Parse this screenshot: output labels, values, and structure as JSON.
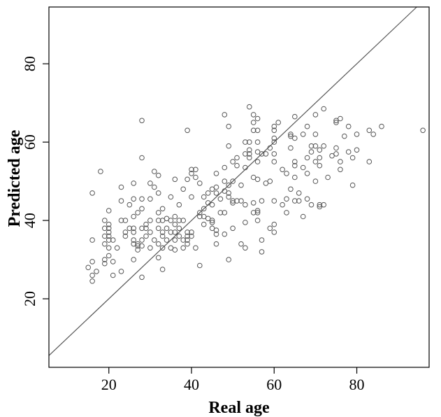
{
  "chart_data": {
    "type": "scatter",
    "title": "",
    "xlabel": "Real age",
    "ylabel": "Predicted age",
    "xlim": [
      5.5,
      97.5
    ],
    "ylim": [
      2.5,
      94.5
    ],
    "x_ticks": [
      20,
      40,
      60,
      80
    ],
    "y_ticks": [
      20,
      40,
      60,
      80
    ],
    "x_tick_labels": [
      "20",
      "40",
      "60",
      "80"
    ],
    "y_tick_labels": [
      "20",
      "40",
      "60",
      "80"
    ],
    "grid": false,
    "legend": "none",
    "reference_line": {
      "slope": 1,
      "intercept": 0
    },
    "point_color": "#555555",
    "line_color": "#555555",
    "points": [
      [
        15,
        28
      ],
      [
        16,
        26
      ],
      [
        16,
        24.5
      ],
      [
        16,
        29.5
      ],
      [
        16,
        35
      ],
      [
        16,
        47
      ],
      [
        17,
        27
      ],
      [
        18,
        52.5
      ],
      [
        19,
        29
      ],
      [
        19,
        30
      ],
      [
        19,
        34
      ],
      [
        19,
        36
      ],
      [
        19,
        38
      ],
      [
        19,
        40
      ],
      [
        20,
        31
      ],
      [
        20,
        33
      ],
      [
        20,
        35
      ],
      [
        20,
        36
      ],
      [
        20,
        37
      ],
      [
        20,
        38
      ],
      [
        20,
        39
      ],
      [
        20,
        42.5
      ],
      [
        21,
        26
      ],
      [
        21,
        29.5
      ],
      [
        21,
        35
      ],
      [
        22,
        33
      ],
      [
        23,
        27
      ],
      [
        23,
        40
      ],
      [
        23,
        45
      ],
      [
        23,
        48.5
      ],
      [
        24,
        36
      ],
      [
        24,
        37
      ],
      [
        24,
        40
      ],
      [
        25,
        38
      ],
      [
        25,
        44
      ],
      [
        26,
        30
      ],
      [
        26,
        34
      ],
      [
        26,
        35
      ],
      [
        26,
        37
      ],
      [
        26,
        38
      ],
      [
        26,
        41
      ],
      [
        26,
        45.5
      ],
      [
        26,
        49.5
      ],
      [
        27,
        32.5
      ],
      [
        27,
        33.5
      ],
      [
        27,
        34
      ],
      [
        27,
        42
      ],
      [
        28,
        25.5
      ],
      [
        28,
        33.5
      ],
      [
        28,
        35
      ],
      [
        28,
        38
      ],
      [
        28,
        43
      ],
      [
        28,
        45.5
      ],
      [
        28,
        56
      ],
      [
        28,
        65.5
      ],
      [
        29,
        36
      ],
      [
        29,
        38
      ],
      [
        29,
        39
      ],
      [
        30,
        33
      ],
      [
        30,
        37
      ],
      [
        30,
        40
      ],
      [
        30,
        45.5
      ],
      [
        30,
        49.5
      ],
      [
        31,
        35
      ],
      [
        31,
        48.5
      ],
      [
        31,
        52.5
      ],
      [
        32,
        30.5
      ],
      [
        32,
        34
      ],
      [
        32,
        38
      ],
      [
        32,
        40
      ],
      [
        32,
        42
      ],
      [
        32,
        47
      ],
      [
        32,
        51.5
      ],
      [
        33,
        27.5
      ],
      [
        33,
        33
      ],
      [
        33,
        36
      ],
      [
        33,
        37
      ],
      [
        33,
        40
      ],
      [
        33,
        43
      ],
      [
        34,
        35
      ],
      [
        34,
        38
      ],
      [
        34,
        40.5
      ],
      [
        35,
        33
      ],
      [
        35,
        37
      ],
      [
        35,
        40
      ],
      [
        35,
        46
      ],
      [
        36,
        32.5
      ],
      [
        36,
        35
      ],
      [
        36,
        37
      ],
      [
        36,
        39
      ],
      [
        36,
        41
      ],
      [
        36,
        50.5
      ],
      [
        37,
        36
      ],
      [
        37,
        38
      ],
      [
        37,
        40
      ],
      [
        37,
        44
      ],
      [
        38,
        33
      ],
      [
        38,
        35
      ],
      [
        38,
        40
      ],
      [
        38,
        48
      ],
      [
        39,
        34
      ],
      [
        39,
        35
      ],
      [
        39,
        36
      ],
      [
        39,
        37
      ],
      [
        39,
        50.5
      ],
      [
        39,
        63
      ],
      [
        40,
        36
      ],
      [
        40,
        37
      ],
      [
        40,
        46
      ],
      [
        40,
        52
      ],
      [
        40,
        53
      ],
      [
        41,
        33
      ],
      [
        41,
        51
      ],
      [
        41,
        53
      ],
      [
        42,
        28.5
      ],
      [
        42,
        41
      ],
      [
        42,
        42
      ],
      [
        42,
        49.5
      ],
      [
        43,
        39
      ],
      [
        43,
        41
      ],
      [
        43,
        43
      ],
      [
        43,
        46
      ],
      [
        44,
        40.5
      ],
      [
        44,
        44.5
      ],
      [
        44,
        47
      ],
      [
        45,
        38
      ],
      [
        45,
        39.5
      ],
      [
        45,
        40
      ],
      [
        45,
        44
      ],
      [
        45,
        48
      ],
      [
        46,
        34
      ],
      [
        46,
        36.5
      ],
      [
        46,
        37.5
      ],
      [
        46,
        47
      ],
      [
        46,
        48.5
      ],
      [
        46,
        52
      ],
      [
        47,
        42
      ],
      [
        47,
        45.5
      ],
      [
        48,
        36.5
      ],
      [
        48,
        42
      ],
      [
        48,
        47.5
      ],
      [
        48,
        50
      ],
      [
        48,
        53.5
      ],
      [
        48,
        67
      ],
      [
        49,
        30
      ],
      [
        49,
        46
      ],
      [
        49,
        47
      ],
      [
        49,
        49
      ],
      [
        49,
        59
      ],
      [
        49,
        64
      ],
      [
        50,
        38
      ],
      [
        50,
        44.5
      ],
      [
        50,
        45
      ],
      [
        50,
        50
      ],
      [
        50,
        55
      ],
      [
        51,
        45
      ],
      [
        51,
        54
      ],
      [
        51,
        56
      ],
      [
        52,
        34
      ],
      [
        52,
        45
      ],
      [
        52,
        49
      ],
      [
        53,
        33
      ],
      [
        53,
        39.5
      ],
      [
        53,
        44
      ],
      [
        53,
        53.5
      ],
      [
        53,
        57
      ],
      [
        53,
        60
      ],
      [
        54,
        56
      ],
      [
        54,
        57
      ],
      [
        54,
        58
      ],
      [
        54,
        60
      ],
      [
        54,
        69
      ],
      [
        55,
        42
      ],
      [
        55,
        44.5
      ],
      [
        55,
        51
      ],
      [
        55,
        63
      ],
      [
        55,
        65
      ],
      [
        55,
        67
      ],
      [
        56,
        40
      ],
      [
        56,
        42
      ],
      [
        56,
        42.5
      ],
      [
        56,
        50.5
      ],
      [
        56,
        55
      ],
      [
        56,
        57.5
      ],
      [
        56,
        60
      ],
      [
        56,
        63
      ],
      [
        56,
        66
      ],
      [
        57,
        32
      ],
      [
        57,
        35
      ],
      [
        57,
        45
      ],
      [
        57,
        57
      ],
      [
        58,
        49.5
      ],
      [
        58,
        57
      ],
      [
        59,
        38
      ],
      [
        59,
        50
      ],
      [
        59,
        58.5
      ],
      [
        60,
        37
      ],
      [
        60,
        39
      ],
      [
        60,
        45
      ],
      [
        60,
        55
      ],
      [
        60,
        57
      ],
      [
        60,
        60
      ],
      [
        60,
        61
      ],
      [
        60,
        63
      ],
      [
        60,
        64
      ],
      [
        61,
        65
      ],
      [
        62,
        44
      ],
      [
        62,
        53
      ],
      [
        63,
        42
      ],
      [
        63,
        45.5
      ],
      [
        63,
        52
      ],
      [
        64,
        48
      ],
      [
        64,
        58.5
      ],
      [
        64,
        61.5
      ],
      [
        64,
        62
      ],
      [
        65,
        45
      ],
      [
        65,
        51
      ],
      [
        65,
        54
      ],
      [
        65,
        55
      ],
      [
        65,
        61
      ],
      [
        65,
        66.5
      ],
      [
        66,
        45
      ],
      [
        66,
        47
      ],
      [
        67,
        41
      ],
      [
        67,
        53.5
      ],
      [
        67,
        62
      ],
      [
        68,
        45.5
      ],
      [
        68,
        52
      ],
      [
        68,
        56
      ],
      [
        68,
        64
      ],
      [
        69,
        44
      ],
      [
        69,
        57.5
      ],
      [
        69,
        59
      ],
      [
        70,
        50
      ],
      [
        70,
        55
      ],
      [
        70,
        59
      ],
      [
        70,
        62
      ],
      [
        70,
        67
      ],
      [
        71,
        43.5
      ],
      [
        71,
        44
      ],
      [
        71,
        54
      ],
      [
        71,
        56
      ],
      [
        71,
        58
      ],
      [
        72,
        44
      ],
      [
        72,
        59
      ],
      [
        72,
        68.5
      ],
      [
        73,
        51
      ],
      [
        74,
        56.5
      ],
      [
        75,
        57
      ],
      [
        75,
        58.5
      ],
      [
        75,
        65
      ],
      [
        75,
        65.5
      ],
      [
        76,
        53
      ],
      [
        76,
        55
      ],
      [
        76,
        66
      ],
      [
        77,
        61.5
      ],
      [
        78,
        57.5
      ],
      [
        78,
        64
      ],
      [
        79,
        49
      ],
      [
        79,
        56
      ],
      [
        80,
        58
      ],
      [
        80,
        62
      ],
      [
        83,
        55
      ],
      [
        83,
        63
      ],
      [
        84,
        62
      ],
      [
        86,
        64
      ],
      [
        96,
        63
      ]
    ]
  }
}
